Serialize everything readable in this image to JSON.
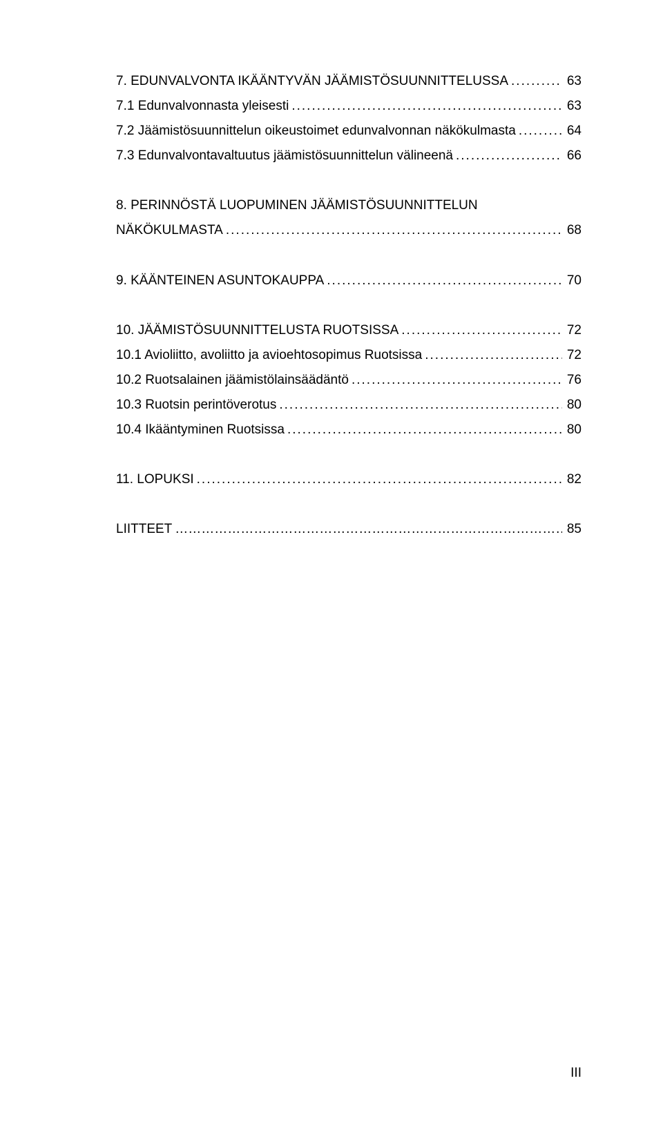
{
  "toc": {
    "groups": [
      {
        "lines": [
          {
            "text": "7. EDUNVALVONTA IKÄÄNTYVÄN JÄÄMISTÖSUUNNITTELUSSA",
            "page": "63",
            "sub": false
          },
          {
            "text": "7.1 Edunvalvonnasta yleisesti",
            "page": "63",
            "sub": true
          },
          {
            "text": "7.2 Jäämistösuunnittelun oikeustoimet edunvalvonnan näkökulmasta",
            "page": "64",
            "sub": true
          },
          {
            "text": "7.3 Edunvalvontavaltuutus jäämistösuunnittelun välineenä",
            "page": "66",
            "sub": true
          }
        ]
      },
      {
        "lines": [
          {
            "text": "8. PERINNÖSTÄ LUOPUMINEN JÄÄMISTÖSUUNNITTELUN NÄKÖKULMASTA",
            "page": "68",
            "sub": false,
            "wrap": true
          }
        ]
      },
      {
        "lines": [
          {
            "text": "9. KÄÄNTEINEN ASUNTOKAUPPA",
            "page": "70",
            "sub": false
          }
        ]
      },
      {
        "lines": [
          {
            "text": "10. JÄÄMISTÖSUUNNITTELUSTA RUOTSISSA",
            "page": "72",
            "sub": false
          },
          {
            "text": "10.1 Avioliitto, avoliitto ja avioehtosopimus Ruotsissa",
            "page": "72",
            "sub": true
          },
          {
            "text": "10.2 Ruotsalainen jäämistölainsäädäntö",
            "page": "76",
            "sub": true
          },
          {
            "text": "10.3 Ruotsin perintöverotus",
            "page": "80",
            "sub": true
          },
          {
            "text": "10.4 Ikääntyminen Ruotsissa",
            "page": "80",
            "sub": true
          }
        ]
      },
      {
        "lines": [
          {
            "text": "11. LOPUKSI",
            "page": "82",
            "sub": false
          }
        ]
      },
      {
        "lines": [
          {
            "text": "LIITTEET",
            "page": "85",
            "sub": false,
            "dotsOverride": "………………………………………………………………………………………"
          }
        ]
      }
    ]
  },
  "pageNumber": "III",
  "style": {
    "fontSize": 19,
    "textColor": "#000000",
    "backgroundColor": "#ffffff",
    "lineHeight": 1.9,
    "groupGapPx": 36
  }
}
